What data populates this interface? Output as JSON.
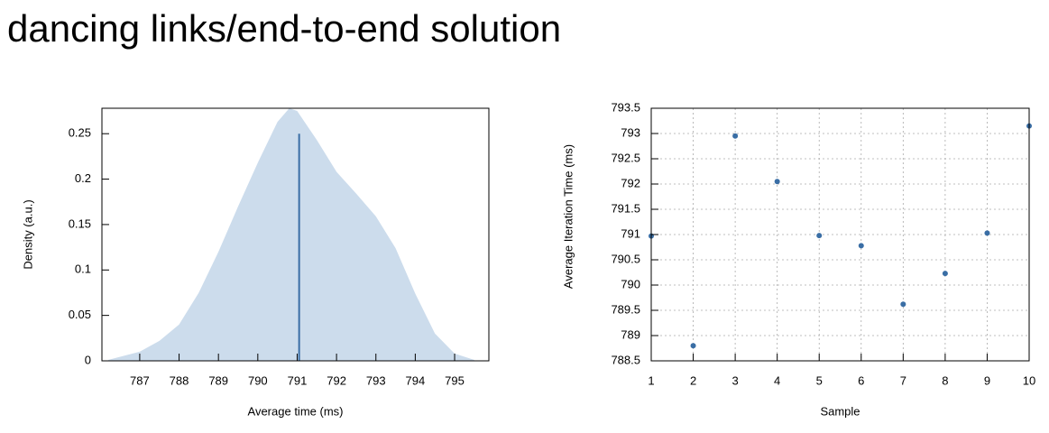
{
  "title": "dancing links/end-to-end solution",
  "chart_data": [
    {
      "type": "area",
      "xlabel": "Average time (ms)",
      "ylabel": "Density (a.u.)",
      "x": [
        786.2,
        787,
        787.5,
        788,
        788.5,
        789,
        789.5,
        790,
        790.5,
        790.8,
        791,
        791.5,
        792,
        792.5,
        793,
        793.5,
        794,
        794.5,
        795,
        795.5
      ],
      "values": [
        0.001,
        0.01,
        0.022,
        0.04,
        0.075,
        0.12,
        0.17,
        0.218,
        0.263,
        0.278,
        0.275,
        0.243,
        0.208,
        0.184,
        0.159,
        0.124,
        0.074,
        0.03,
        0.008,
        0.001
      ],
      "color": "#ccdcec",
      "mean": {
        "x": 791.05,
        "y": 0.25,
        "color": "#3a6ea5"
      },
      "xlim": [
        786.04,
        795.87
      ],
      "ylim": [
        0,
        0.278
      ],
      "xticks": [
        787,
        788,
        789,
        790,
        791,
        792,
        793,
        794,
        795
      ],
      "yticks": [
        0,
        0.05,
        0.1,
        0.15,
        0.2,
        0.25
      ],
      "grid": false
    },
    {
      "type": "scatter",
      "xlabel": "Sample",
      "ylabel": "Average Iteration Time (ms)",
      "x": [
        1,
        2,
        3,
        4,
        5,
        6,
        7,
        8,
        9,
        10
      ],
      "values": [
        790.97,
        788.8,
        792.95,
        792.05,
        790.98,
        790.78,
        789.62,
        790.23,
        791.03,
        793.15
      ],
      "color": "#3a6ea5",
      "xlim": [
        1,
        10
      ],
      "ylim": [
        788.5,
        793.5
      ],
      "xticks": [
        1,
        2,
        3,
        4,
        5,
        6,
        7,
        8,
        9,
        10
      ],
      "yticks": [
        788.5,
        789,
        789.5,
        790,
        790.5,
        791,
        791.5,
        792,
        792.5,
        793,
        793.5
      ],
      "grid": true
    }
  ]
}
